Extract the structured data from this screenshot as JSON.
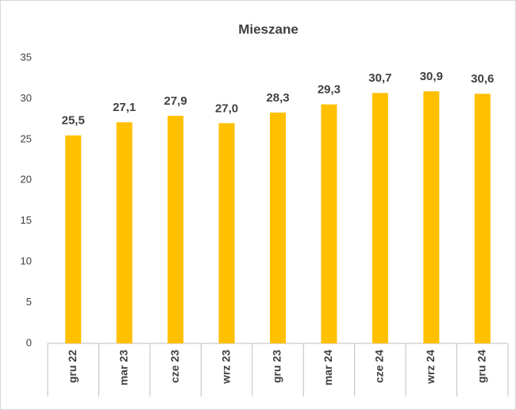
{
  "chart_data": {
    "type": "bar",
    "title": "Mieszane",
    "categories": [
      "gru 22",
      "mar 23",
      "cze 23",
      "wrz 23",
      "gru 23",
      "mar 24",
      "cze 24",
      "wrz 24",
      "gru 24"
    ],
    "values": [
      25.5,
      27.1,
      27.9,
      27.0,
      28.3,
      29.3,
      30.7,
      30.9,
      30.6
    ],
    "value_labels": [
      "25,5",
      "27,1",
      "27,9",
      "27,0",
      "28,3",
      "29,3",
      "30,7",
      "30,9",
      "30,6"
    ],
    "color": "#ffc000",
    "ylim": [
      0,
      35
    ],
    "yticks": [
      0,
      5,
      10,
      15,
      20,
      25,
      30,
      35
    ],
    "grid": false
  }
}
